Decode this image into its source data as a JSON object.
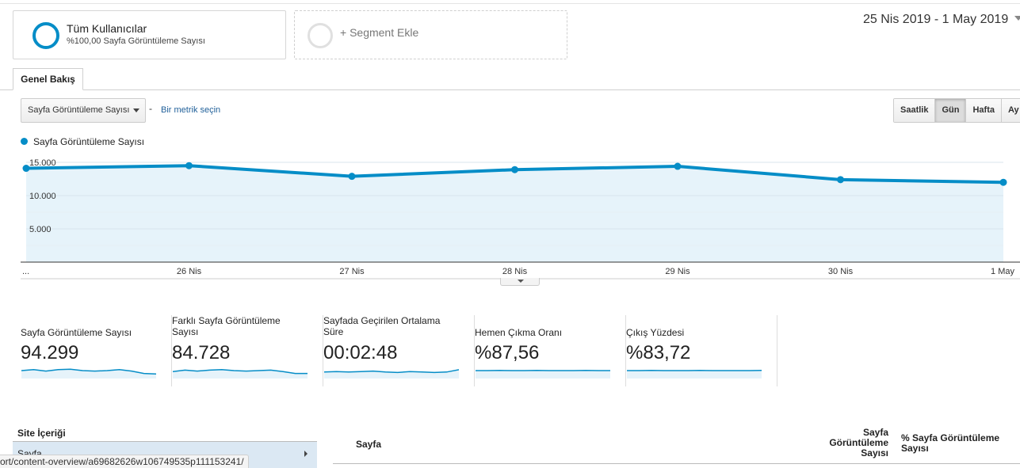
{
  "segments": {
    "active": {
      "title": "Tüm Kullanıcılar",
      "subtitle": "%100,00 Sayfa Görüntüleme Sayısı"
    },
    "add_label": "+ Segment Ekle"
  },
  "date_range": "25 Nis 2019 - 1 May 2019",
  "tabs": [
    {
      "label": "Genel Bakış",
      "active": true
    }
  ],
  "controls": {
    "metric_select": "Sayfa Görüntüleme Sayısı",
    "separator": "-",
    "metric_link": "Bir metrik seçin",
    "time_ranges": [
      {
        "label": "Saatlik",
        "active": false
      },
      {
        "label": "Gün",
        "active": true
      },
      {
        "label": "Hafta",
        "active": false
      },
      {
        "label": "Ay",
        "active": false
      }
    ]
  },
  "chart_data": {
    "type": "area",
    "legend": "Sayfa Görüntüleme Sayısı",
    "color": "#058dc7",
    "fill_color": "#e6f3fa",
    "x": [
      "...",
      "26 Nis",
      "27 Nis",
      "28 Nis",
      "29 Nis",
      "30 Nis",
      "1 May"
    ],
    "series": [
      {
        "name": "Sayfa Görüntüleme Sayısı",
        "values": [
          14100,
          14500,
          12900,
          13900,
          14400,
          12400,
          12000
        ]
      }
    ],
    "y_ticks": [
      "15.000",
      "10.000",
      "5.000"
    ],
    "y_tick_values": [
      15000,
      10000,
      5000
    ],
    "ylim": [
      0,
      15000
    ],
    "grid": true
  },
  "scorecards": [
    {
      "label": "Sayfa Görüntüleme Sayısı",
      "value": "94.299",
      "spark": [
        0.5,
        0.6,
        0.45,
        0.6,
        0.65,
        0.5,
        0.45,
        0.5,
        0.6,
        0.45,
        0.2,
        0.15
      ]
    },
    {
      "label": "Farklı Sayfa Görüntüleme Sayısı",
      "value": "84.728",
      "spark": [
        0.4,
        0.55,
        0.45,
        0.55,
        0.6,
        0.5,
        0.45,
        0.5,
        0.55,
        0.4,
        0.2,
        0.2
      ]
    },
    {
      "label": "Sayfada Geçirilen Ortalama Süre",
      "value": "00:02:48",
      "spark": [
        0.35,
        0.4,
        0.35,
        0.4,
        0.45,
        0.35,
        0.3,
        0.4,
        0.35,
        0.3,
        0.35,
        0.6
      ]
    },
    {
      "label": "Hemen Çıkma Oranı",
      "value": "%87,56",
      "spark": [
        0.5,
        0.5,
        0.52,
        0.5,
        0.5,
        0.52,
        0.5,
        0.5,
        0.5,
        0.52,
        0.5,
        0.5
      ]
    },
    {
      "label": "Çıkış Yüzdesi",
      "value": "%83,72",
      "spark": [
        0.5,
        0.5,
        0.52,
        0.5,
        0.5,
        0.5,
        0.52,
        0.5,
        0.5,
        0.5,
        0.5,
        0.52
      ]
    }
  ],
  "site_content": {
    "title": "Site İçeriği",
    "items": [
      {
        "label": "Sayfa",
        "selected": true
      }
    ]
  },
  "table": {
    "headers": {
      "page": "Sayfa",
      "views": "Sayfa Görüntüleme Sayısı",
      "pct_views": "% Sayfa Görüntüleme Sayısı"
    }
  },
  "status_bar": "ort/content-overview/a69682626w106749535p111153241/"
}
